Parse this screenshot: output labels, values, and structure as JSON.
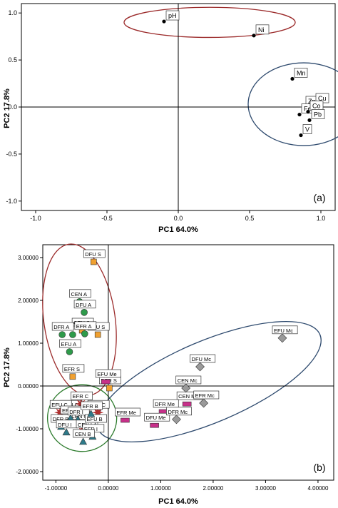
{
  "chart_data": [
    {
      "type": "scatter",
      "panel_label": "(a)",
      "xlabel": "PC1 64.0%",
      "ylabel": "PC2 17.8%",
      "xlim": [
        -1.1,
        1.1
      ],
      "ylim": [
        -1.1,
        1.1
      ],
      "xticks": [
        "-1.0",
        "-0.5",
        "0.0",
        "0.5",
        "1.0"
      ],
      "xtick_values": [
        -1.0,
        -0.5,
        0.0,
        0.5,
        1.0
      ],
      "yticks": [
        "1.0",
        "0.5",
        "0.0",
        "-0.5",
        "-1.0"
      ],
      "ytick_values": [
        1.0,
        0.5,
        0.0,
        -0.5,
        -1.0
      ],
      "grid": false,
      "points": [
        {
          "label": "pH",
          "x": -0.1,
          "y": 0.91
        },
        {
          "label": "Ni",
          "x": 0.53,
          "y": 0.76
        },
        {
          "label": "Mn",
          "x": 0.8,
          "y": 0.3
        },
        {
          "label": "Zn",
          "x": 0.88,
          "y": 0.0
        },
        {
          "label": "Cu",
          "x": 0.95,
          "y": 0.03
        },
        {
          "label": "Fe",
          "x": 0.85,
          "y": -0.08
        },
        {
          "label": "Co",
          "x": 0.91,
          "y": -0.05
        },
        {
          "label": "Pb",
          "x": 0.92,
          "y": -0.14
        },
        {
          "label": "V",
          "x": 0.86,
          "y": -0.3
        }
      ],
      "ellipses": [
        {
          "color": "#9b2a2a",
          "cx": 0.22,
          "cy": 0.9,
          "rx": 0.6,
          "ry": 0.16
        },
        {
          "color": "#2e4a6e",
          "cx": 0.88,
          "cy": 0.03,
          "rx": 0.39,
          "ry": 0.44
        }
      ]
    },
    {
      "type": "scatter",
      "panel_label": "(b)",
      "xlabel": "PC1 64.0%",
      "ylabel": "PC2 17.8%",
      "xlim": [
        -1.25,
        4.3
      ],
      "ylim": [
        -2.2,
        3.3
      ],
      "xticks": [
        "-1.00000",
        "0.00000",
        "1.00000",
        "2.00000",
        "3.00000",
        "4.00000"
      ],
      "xtick_values": [
        -1,
        0,
        1,
        2,
        3,
        4
      ],
      "yticks": [
        "3.00000",
        "2.00000",
        "1.00000",
        "0.00000",
        "-1.00000",
        "-2.00000"
      ],
      "ytick_values": [
        3,
        2,
        1,
        0,
        -1,
        -2
      ],
      "grid": false,
      "groups": [
        {
          "marker": "square",
          "color": "#f0a030",
          "points": [
            {
              "label": "DFU S",
              "x": -0.28,
              "y": 2.9
            },
            {
              "label": "CEN S",
              "x": -0.5,
              "y": 1.3
            },
            {
              "label": "EFU S",
              "x": -0.2,
              "y": 1.2
            },
            {
              "label": "EFR S",
              "x": -0.68,
              "y": 0.22
            },
            {
              "label": "DFR S",
              "x": 0.02,
              "y": -0.05
            }
          ]
        },
        {
          "marker": "circle",
          "color": "#2e9a4a",
          "points": [
            {
              "label": "CEN A",
              "x": -0.55,
              "y": 1.97
            },
            {
              "label": "DFU A",
              "x": -0.46,
              "y": 1.72
            },
            {
              "label": "DFR A",
              "x": -0.88,
              "y": 1.2
            },
            {
              "label": "EFR A",
              "x": -0.45,
              "y": 1.22
            },
            {
              "label": "EFU A",
              "x": -0.74,
              "y": 0.8
            },
            {
              "label": "",
              "x": -0.68,
              "y": 1.2
            }
          ]
        },
        {
          "marker": "rect",
          "color": "#c8308a",
          "points": [
            {
              "label": "EFU Me",
              "x": -0.05,
              "y": 0.1
            },
            {
              "label": "EFR Me",
              "x": 0.32,
              "y": -0.8
            },
            {
              "label": "CEN Me",
              "x": 1.5,
              "y": -0.42
            },
            {
              "label": "DFR Me",
              "x": 1.05,
              "y": -0.6
            },
            {
              "label": "DFU Me",
              "x": 0.88,
              "y": -0.92
            }
          ]
        },
        {
          "marker": "diamond",
          "color": "#9a9a9a",
          "points": [
            {
              "label": "EFU Mc",
              "x": 3.32,
              "y": 1.12
            },
            {
              "label": "DFU Mc",
              "x": 1.75,
              "y": 0.45
            },
            {
              "label": "CEN Mc",
              "x": 1.48,
              "y": -0.05
            },
            {
              "label": "EFR Mc",
              "x": 1.82,
              "y": -0.4
            },
            {
              "label": "DFR Mc",
              "x": 1.3,
              "y": -0.78
            }
          ]
        },
        {
          "marker": "star",
          "color": "#b03030",
          "points": [
            {
              "label": "DFU C",
              "x": -0.72,
              "y": -0.62
            },
            {
              "label": "EFR C",
              "x": -0.52,
              "y": -0.42
            },
            {
              "label": "DFR C",
              "x": -0.2,
              "y": -0.62
            },
            {
              "label": "EFU C",
              "x": -0.92,
              "y": -0.62
            },
            {
              "label": "CEN C",
              "x": -0.55,
              "y": -0.88
            },
            {
              "label": "",
              "x": -0.48,
              "y": -0.95
            }
          ]
        },
        {
          "marker": "triangle",
          "color": "#2e7a8a",
          "points": [
            {
              "label": "DFR B",
              "x": -0.9,
              "y": -0.95
            },
            {
              "label": "EFU I",
              "x": -0.72,
              "y": -0.75
            },
            {
              "label": "DFR I",
              "x": -0.58,
              "y": -0.78
            },
            {
              "label": "DFU I",
              "x": -0.8,
              "y": -1.08
            },
            {
              "label": "CEN I",
              "x": -0.42,
              "y": -1.08
            },
            {
              "label": "EFU B",
              "x": -0.25,
              "y": -0.95
            },
            {
              "label": "EFR B",
              "x": -0.33,
              "y": -0.65
            },
            {
              "label": "EFR I",
              "x": -0.3,
              "y": -1.18
            },
            {
              "label": "CEN B",
              "x": -0.48,
              "y": -1.3
            }
          ]
        }
      ],
      "ellipses": [
        {
          "color": "#9b2a2a",
          "cx": -0.55,
          "cy": 1.55,
          "rx": 0.68,
          "ry": 1.78,
          "rotate": 8
        },
        {
          "color": "#2b7a2b",
          "cx": -0.5,
          "cy": -0.75,
          "rx": 0.66,
          "ry": 0.78,
          "rotate": 0
        },
        {
          "color": "#2e4a6e",
          "cx": 1.92,
          "cy": 0.1,
          "rx": 2.3,
          "ry": 0.95,
          "rotate": 23
        }
      ]
    }
  ]
}
